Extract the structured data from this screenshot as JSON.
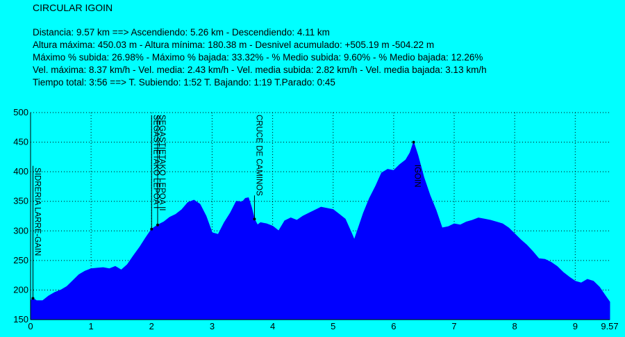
{
  "title": "CIRCULAR IGOIN",
  "stats": [
    "Distancia: 9.57 km   ==>   Ascendiendo: 5.26 km - Descendiendo: 4.11 km",
    "Altura máxima: 450.03 m - Altura mínima: 180.38 m - Desnivel acumulado: +505.19 m  -504.22 m",
    "Máximo % subida: 26.98%  - Máximo % bajada: 33.32%  - % Medio subida: 9.60%  - % Medio bajada: 12.26%",
    "Vel. máxima: 8.37 km/h - Vel. media: 2.43 km/h - Vel. media subida: 2.82 km/h - Vel. media bajada: 3.13 km/h",
    "Tiempo total: 3:56   ==>   T. Subiendo: 1:52  T. Bajando: 1:19  T.Parado: 0:45"
  ],
  "colors": {
    "background": "#00ffff",
    "fill": "#0000ff",
    "grid": "#000000"
  },
  "chart_data": {
    "type": "area",
    "xlim": [
      0,
      9.57
    ],
    "ylim": [
      150,
      500
    ],
    "x_ticks": [
      0,
      1,
      2,
      3,
      4,
      5,
      6,
      7,
      8,
      9
    ],
    "x_tick_labels": [
      "0",
      "1",
      "2",
      "3",
      "4",
      "5",
      "6",
      "7",
      "8",
      "9"
    ],
    "x_end_label": "9.57",
    "y_ticks": [
      150,
      200,
      250,
      300,
      350,
      400,
      450,
      500
    ],
    "y_tick_labels": [
      "150",
      "200",
      "250",
      "300",
      "350",
      "400",
      "450",
      "500"
    ],
    "grid": true,
    "series": [
      {
        "x": [
          0,
          0.04,
          0.1,
          0.2,
          0.3,
          0.4,
          0.5,
          0.6,
          0.7,
          0.8,
          0.9,
          1.0,
          1.1,
          1.2,
          1.3,
          1.4,
          1.5,
          1.6,
          1.7,
          1.8,
          1.9,
          2.0,
          2.1,
          2.2,
          2.3,
          2.4,
          2.5,
          2.6,
          2.7,
          2.8,
          2.9,
          3.0,
          3.1,
          3.2,
          3.3,
          3.4,
          3.5,
          3.55,
          3.6,
          3.65,
          3.7,
          3.75,
          3.8,
          3.9,
          4.0,
          4.1,
          4.2,
          4.3,
          4.4,
          4.5,
          4.6,
          4.7,
          4.8,
          4.9,
          5.0,
          5.1,
          5.2,
          5.3,
          5.35,
          5.4,
          5.5,
          5.6,
          5.7,
          5.8,
          5.9,
          6.0,
          6.1,
          6.2,
          6.27,
          6.33,
          6.4,
          6.5,
          6.6,
          6.7,
          6.8,
          6.9,
          7.0,
          7.1,
          7.2,
          7.3,
          7.4,
          7.5,
          7.6,
          7.7,
          7.8,
          7.9,
          8.0,
          8.1,
          8.2,
          8.3,
          8.4,
          8.5,
          8.6,
          8.7,
          8.8,
          8.9,
          9.0,
          9.1,
          9.2,
          9.3,
          9.4,
          9.5,
          9.57
        ],
        "y": [
          182,
          186,
          182,
          182,
          190,
          196,
          200,
          206,
          216,
          226,
          232,
          236,
          237,
          238,
          236,
          240,
          234,
          243,
          258,
          272,
          288,
          303,
          310,
          315,
          323,
          328,
          336,
          348,
          352,
          345,
          325,
          297,
          294,
          314,
          330,
          350,
          349,
          355,
          356,
          340,
          320,
          310,
          314,
          312,
          308,
          300,
          317,
          322,
          318,
          325,
          330,
          335,
          340,
          338,
          336,
          328,
          320,
          297,
          285,
          300,
          330,
          355,
          375,
          398,
          404,
          402,
          412,
          420,
          432,
          450,
          428,
          390,
          360,
          335,
          305,
          307,
          312,
          310,
          315,
          318,
          322,
          320,
          318,
          315,
          312,
          305,
          295,
          285,
          276,
          265,
          253,
          252,
          247,
          240,
          230,
          222,
          215,
          212,
          218,
          215,
          205,
          190,
          180
        ]
      }
    ],
    "waypoints": [
      {
        "label": "SIDRERIA LARRE-GAIN",
        "x": 0.04,
        "y": 186
      },
      {
        "label": "SEGASTIETAKO LEPOA I",
        "x": 2.0,
        "y": 303
      },
      {
        "label": "SEGASTIETAKO LEPOA II",
        "x": 2.1,
        "y": 310
      },
      {
        "label": "CRUCE DE CAMINOS",
        "x": 3.7,
        "y": 320
      },
      {
        "label": "IGOIN",
        "x": 6.33,
        "y": 450
      }
    ]
  }
}
